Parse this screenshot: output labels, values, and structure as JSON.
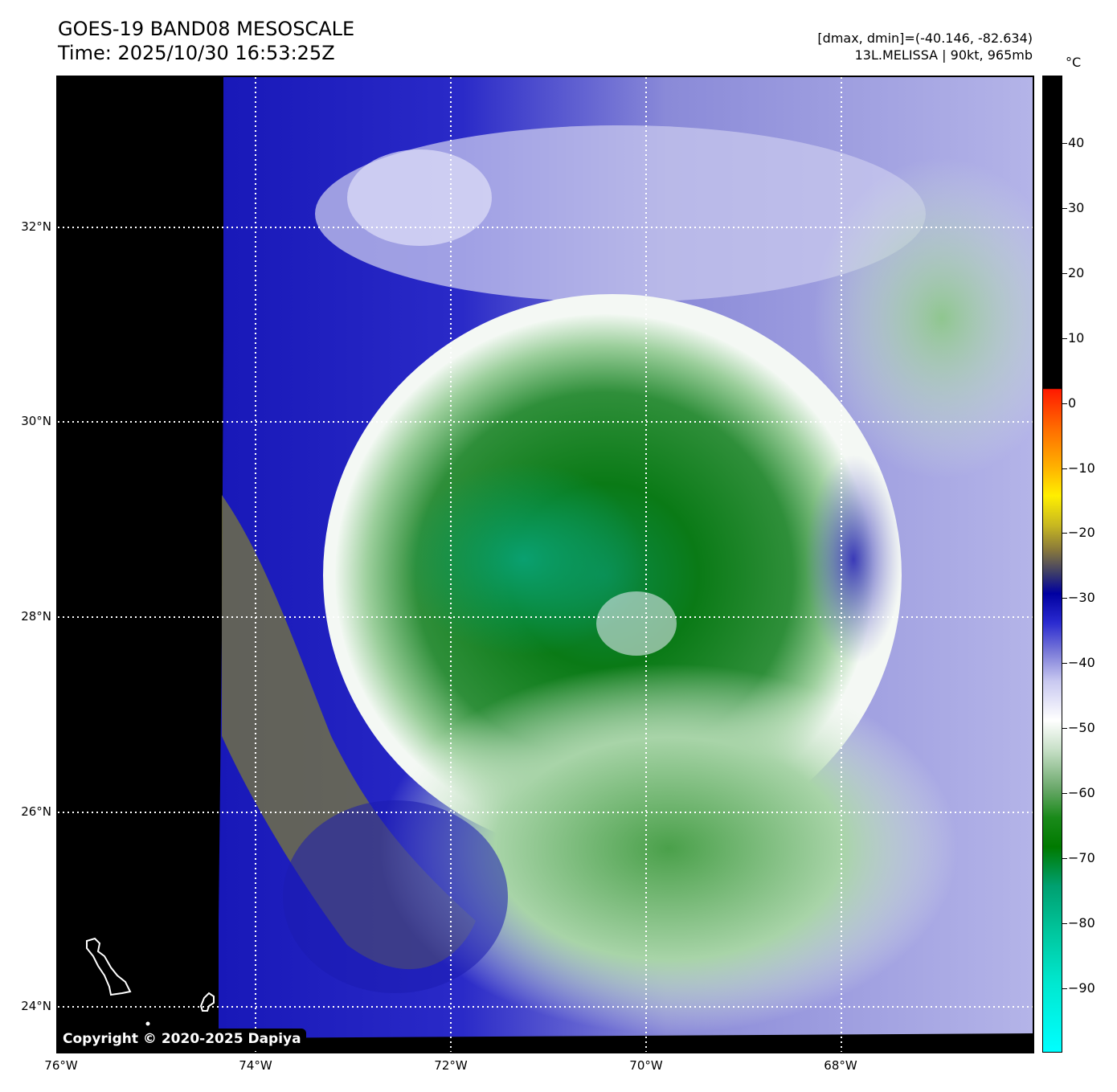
{
  "header": {
    "title_line1": "GOES-19 BAND08 MESOSCALE",
    "title_line2": "Time: 2025/10/30 16:53:25Z",
    "info_line1": "[dmax, dmin]=(-40.146, -82.634)",
    "info_line2": "13L.MELISSA | 90kt, 965mb"
  },
  "map": {
    "lat_labels": [
      "32°N",
      "30°N",
      "28°N",
      "26°N",
      "24°N"
    ],
    "lon_labels": [
      "76°W",
      "74°W",
      "72°W",
      "70°W",
      "68°W"
    ]
  },
  "colorbar": {
    "unit": "°C",
    "ticks": [
      "40",
      "30",
      "20",
      "10",
      "0",
      "−10",
      "−20",
      "−30",
      "−40",
      "−50",
      "−60",
      "−70",
      "−80",
      "−90"
    ]
  },
  "copyright": "Copyright © 2020-2025 Dapiya"
}
